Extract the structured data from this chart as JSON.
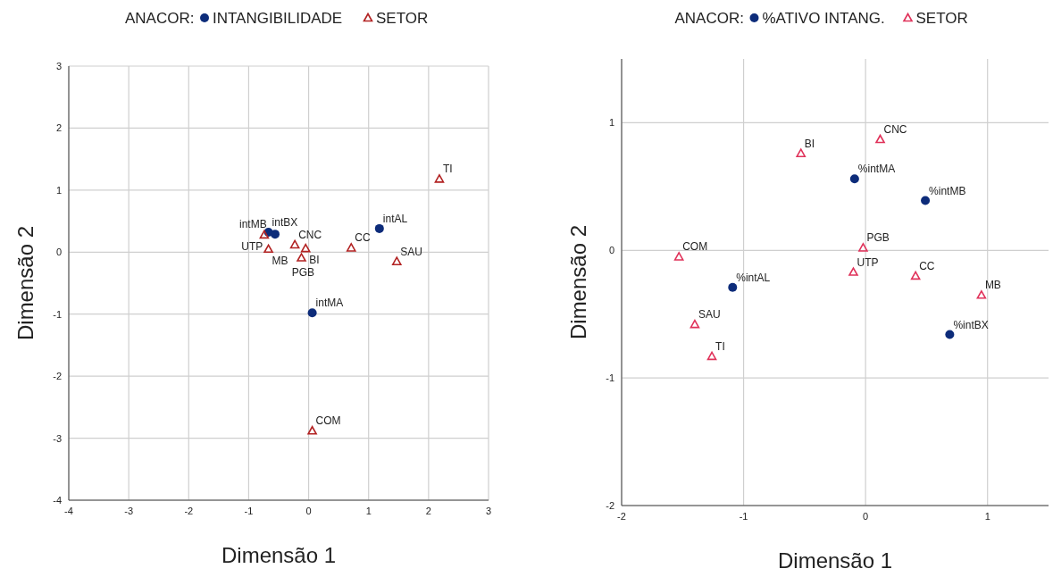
{
  "chart_data": [
    {
      "type": "scatter",
      "legend_title": "ANACOR:",
      "xlabel": "Dimensão 1",
      "ylabel": "Dimensão 2",
      "xlim": [
        -4,
        3
      ],
      "ylim": [
        -4,
        3
      ],
      "xticks": [
        -4,
        -3,
        -2,
        -1,
        0,
        1,
        2,
        3
      ],
      "yticks": [
        -4,
        -3,
        -2,
        -1,
        0,
        1,
        2,
        3
      ],
      "grid": true,
      "legend": "top",
      "series": [
        {
          "name": "INTANGIBILIDADE",
          "color": "#0d2c7a",
          "marker": "circle",
          "x": [
            -0.67,
            -0.56,
            1.18,
            0.06
          ],
          "values": [
            0.32,
            0.29,
            0.38,
            -0.98
          ]
        },
        {
          "name": "SETOR",
          "color": "#b22222",
          "marker": "triangle",
          "x": [
            -0.74,
            -0.67,
            -0.23,
            -0.05,
            -0.12,
            0.71,
            1.47,
            2.18,
            0.06
          ],
          "values": [
            0.28,
            0.05,
            0.12,
            0.06,
            -0.09,
            0.07,
            -0.15,
            1.18,
            -2.88
          ]
        }
      ],
      "annotations": [
        {
          "text": "intBX",
          "x": -0.67,
          "y": 0.32
        },
        {
          "text": "intMB",
          "x": -0.56,
          "y": 0.29
        },
        {
          "text": "intAL",
          "x": 1.18,
          "y": 0.38
        },
        {
          "text": "intMA",
          "x": 0.06,
          "y": -0.98
        },
        {
          "text": "UTP",
          "x": -0.74,
          "y": 0.28
        },
        {
          "text": "MB",
          "x": -0.67,
          "y": 0.05
        },
        {
          "text": "CNC",
          "x": -0.23,
          "y": 0.12
        },
        {
          "text": "BI",
          "x": -0.05,
          "y": 0.06
        },
        {
          "text": "PGB",
          "x": -0.12,
          "y": -0.09
        },
        {
          "text": "CC",
          "x": 0.71,
          "y": 0.07
        },
        {
          "text": "SAU",
          "x": 1.47,
          "y": -0.15
        },
        {
          "text": "TI",
          "x": 2.18,
          "y": 1.18
        },
        {
          "text": "COM",
          "x": 0.06,
          "y": -2.88
        }
      ]
    },
    {
      "type": "scatter",
      "legend_title": "ANACOR:",
      "xlabel": "Dimensão 1",
      "ylabel": "Dimensão 2",
      "xlim": [
        -2,
        1.5
      ],
      "ylim": [
        -2,
        1.5
      ],
      "xticks": [
        -2,
        -1,
        0,
        1
      ],
      "yticks": [
        -2,
        -1,
        0,
        1
      ],
      "grid": true,
      "legend": "top",
      "series": [
        {
          "name": "%ATIVO INTANG.",
          "color": "#0d2c7a",
          "marker": "circle",
          "x": [
            -0.09,
            0.49,
            -1.09,
            0.69
          ],
          "values": [
            0.56,
            0.39,
            -0.29,
            -0.66
          ]
        },
        {
          "name": "SETOR",
          "color": "#e0325a",
          "marker": "triangle",
          "x": [
            0.12,
            -0.53,
            -0.02,
            -0.1,
            0.41,
            0.95,
            -1.53,
            -1.4,
            -1.26
          ],
          "values": [
            0.87,
            0.76,
            0.02,
            -0.17,
            -0.2,
            -0.35,
            -0.05,
            -0.58,
            -0.83
          ]
        }
      ],
      "annotations": [
        {
          "text": "%intMA",
          "x": -0.09,
          "y": 0.56
        },
        {
          "text": "%intMB",
          "x": 0.49,
          "y": 0.39
        },
        {
          "text": "%intAL",
          "x": -1.09,
          "y": -0.29
        },
        {
          "text": "%intBX",
          "x": 0.69,
          "y": -0.66
        },
        {
          "text": "CNC",
          "x": 0.12,
          "y": 0.87
        },
        {
          "text": "BI",
          "x": -0.53,
          "y": 0.76
        },
        {
          "text": "PGB",
          "x": -0.02,
          "y": 0.02
        },
        {
          "text": "UTP",
          "x": -0.1,
          "y": -0.17
        },
        {
          "text": "CC",
          "x": 0.41,
          "y": -0.2
        },
        {
          "text": "MB",
          "x": 0.95,
          "y": -0.35
        },
        {
          "text": "COM",
          "x": -1.53,
          "y": -0.05
        },
        {
          "text": "SAU",
          "x": -1.4,
          "y": -0.58
        },
        {
          "text": "TI",
          "x": -1.26,
          "y": -0.83
        }
      ]
    }
  ]
}
